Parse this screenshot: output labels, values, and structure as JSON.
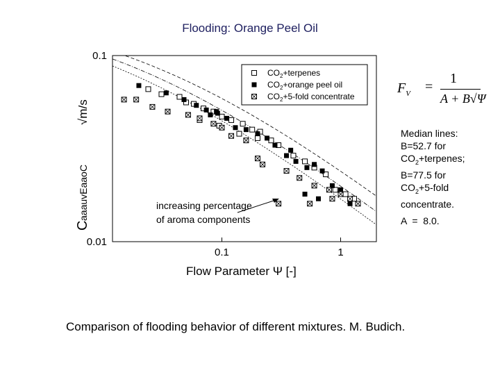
{
  "title": "Flooding: Orange Peel Oil",
  "caption": "Comparison of flooding behavior of different mixtures. M. Budich.",
  "formula": {
    "lhs": "F",
    "lhs_sub": "V",
    "numerator": "1",
    "denominator": "A + B√Ψ"
  },
  "notes": {
    "line1": "Median lines:",
    "line2": "B=52.7 for",
    "line3_pre": "CO",
    "line3_sub": "2",
    "line3_post": "+terpenes;",
    "line4": "B=77.5 for",
    "line5_pre": "CO",
    "line5_sub": "2",
    "line5_post": "+5-fold",
    "line6": "concentrate.",
    "a_value": "A  =  8.0."
  },
  "chart_data": {
    "type": "scatter",
    "xscale": "log",
    "yscale": "log",
    "xlim": [
      0.012,
      2.0
    ],
    "ylim": [
      0.01,
      0.1
    ],
    "xticks": [
      {
        "value": 0.1,
        "label": "0.1"
      },
      {
        "value": 1,
        "label": "1"
      }
    ],
    "yticks": [
      {
        "value": 0.1,
        "label": "0.1"
      },
      {
        "value": 0.01,
        "label": "0.01"
      }
    ],
    "xlabel": "Flow Parameter Ψ [-]",
    "ylabel_main": "C",
    "ylabel_unit": "√m/s",
    "ylabel_garbled": "aaauvEaaoC",
    "legend_position": "top-right",
    "annotation": "increasing percentage of aroma components",
    "series": [
      {
        "name": "CO2+terpenes",
        "marker": "open-square",
        "points": [
          [
            0.024,
            0.066
          ],
          [
            0.031,
            0.062
          ],
          [
            0.044,
            0.06
          ],
          [
            0.05,
            0.056
          ],
          [
            0.058,
            0.055
          ],
          [
            0.07,
            0.052
          ],
          [
            0.085,
            0.05
          ],
          [
            0.1,
            0.047
          ],
          [
            0.12,
            0.045
          ],
          [
            0.15,
            0.043
          ],
          [
            0.18,
            0.04
          ],
          [
            0.21,
            0.039
          ],
          [
            0.26,
            0.035
          ],
          [
            0.3,
            0.033
          ],
          [
            0.4,
            0.029
          ],
          [
            0.5,
            0.027
          ],
          [
            0.6,
            0.025
          ],
          [
            0.75,
            0.023
          ],
          [
            0.9,
            0.019
          ],
          [
            1.1,
            0.018
          ],
          [
            1.3,
            0.017
          ],
          [
            0.065,
            0.045
          ],
          [
            0.095,
            0.042
          ],
          [
            0.14,
            0.038
          ],
          [
            0.2,
            0.036
          ]
        ]
      },
      {
        "name": "CO2+orange peel oil",
        "marker": "filled-square",
        "points": [
          [
            0.02,
            0.069
          ],
          [
            0.034,
            0.063
          ],
          [
            0.048,
            0.058
          ],
          [
            0.061,
            0.054
          ],
          [
            0.074,
            0.051
          ],
          [
            0.08,
            0.048
          ],
          [
            0.092,
            0.049
          ],
          [
            0.11,
            0.046
          ],
          [
            0.13,
            0.041
          ],
          [
            0.16,
            0.04
          ],
          [
            0.2,
            0.038
          ],
          [
            0.24,
            0.036
          ],
          [
            0.28,
            0.033
          ],
          [
            0.35,
            0.029
          ],
          [
            0.42,
            0.027
          ],
          [
            0.52,
            0.025
          ],
          [
            0.6,
            0.026
          ],
          [
            0.7,
            0.024
          ],
          [
            0.85,
            0.02
          ],
          [
            1.0,
            0.019
          ],
          [
            0.5,
            0.018
          ],
          [
            0.65,
            0.017
          ],
          [
            1.2,
            0.016
          ],
          [
            0.38,
            0.031
          ],
          [
            0.09,
            0.05
          ]
        ]
      },
      {
        "name": "CO2+5-fold concentrate",
        "marker": "crossed-square",
        "points": [
          [
            0.015,
            0.058
          ],
          [
            0.019,
            0.058
          ],
          [
            0.026,
            0.053
          ],
          [
            0.035,
            0.05
          ],
          [
            0.052,
            0.048
          ],
          [
            0.065,
            0.046
          ],
          [
            0.085,
            0.043
          ],
          [
            0.1,
            0.041
          ],
          [
            0.12,
            0.037
          ],
          [
            0.16,
            0.035
          ],
          [
            0.2,
            0.028
          ],
          [
            0.22,
            0.026
          ],
          [
            0.35,
            0.024
          ],
          [
            0.45,
            0.022
          ],
          [
            0.6,
            0.02
          ],
          [
            0.8,
            0.019
          ],
          [
            1.0,
            0.018
          ],
          [
            1.2,
            0.017
          ],
          [
            0.85,
            0.017
          ],
          [
            0.55,
            0.016
          ],
          [
            0.3,
            0.016
          ],
          [
            1.4,
            0.016
          ]
        ]
      }
    ],
    "median_lines": [
      {
        "name": "B=52.7",
        "A": 8.0,
        "B": 52.7
      },
      {
        "name": "B=77.5",
        "A": 8.0,
        "B": 77.5
      },
      {
        "name": "",
        "A": 8.0,
        "B": 65.0
      }
    ]
  }
}
